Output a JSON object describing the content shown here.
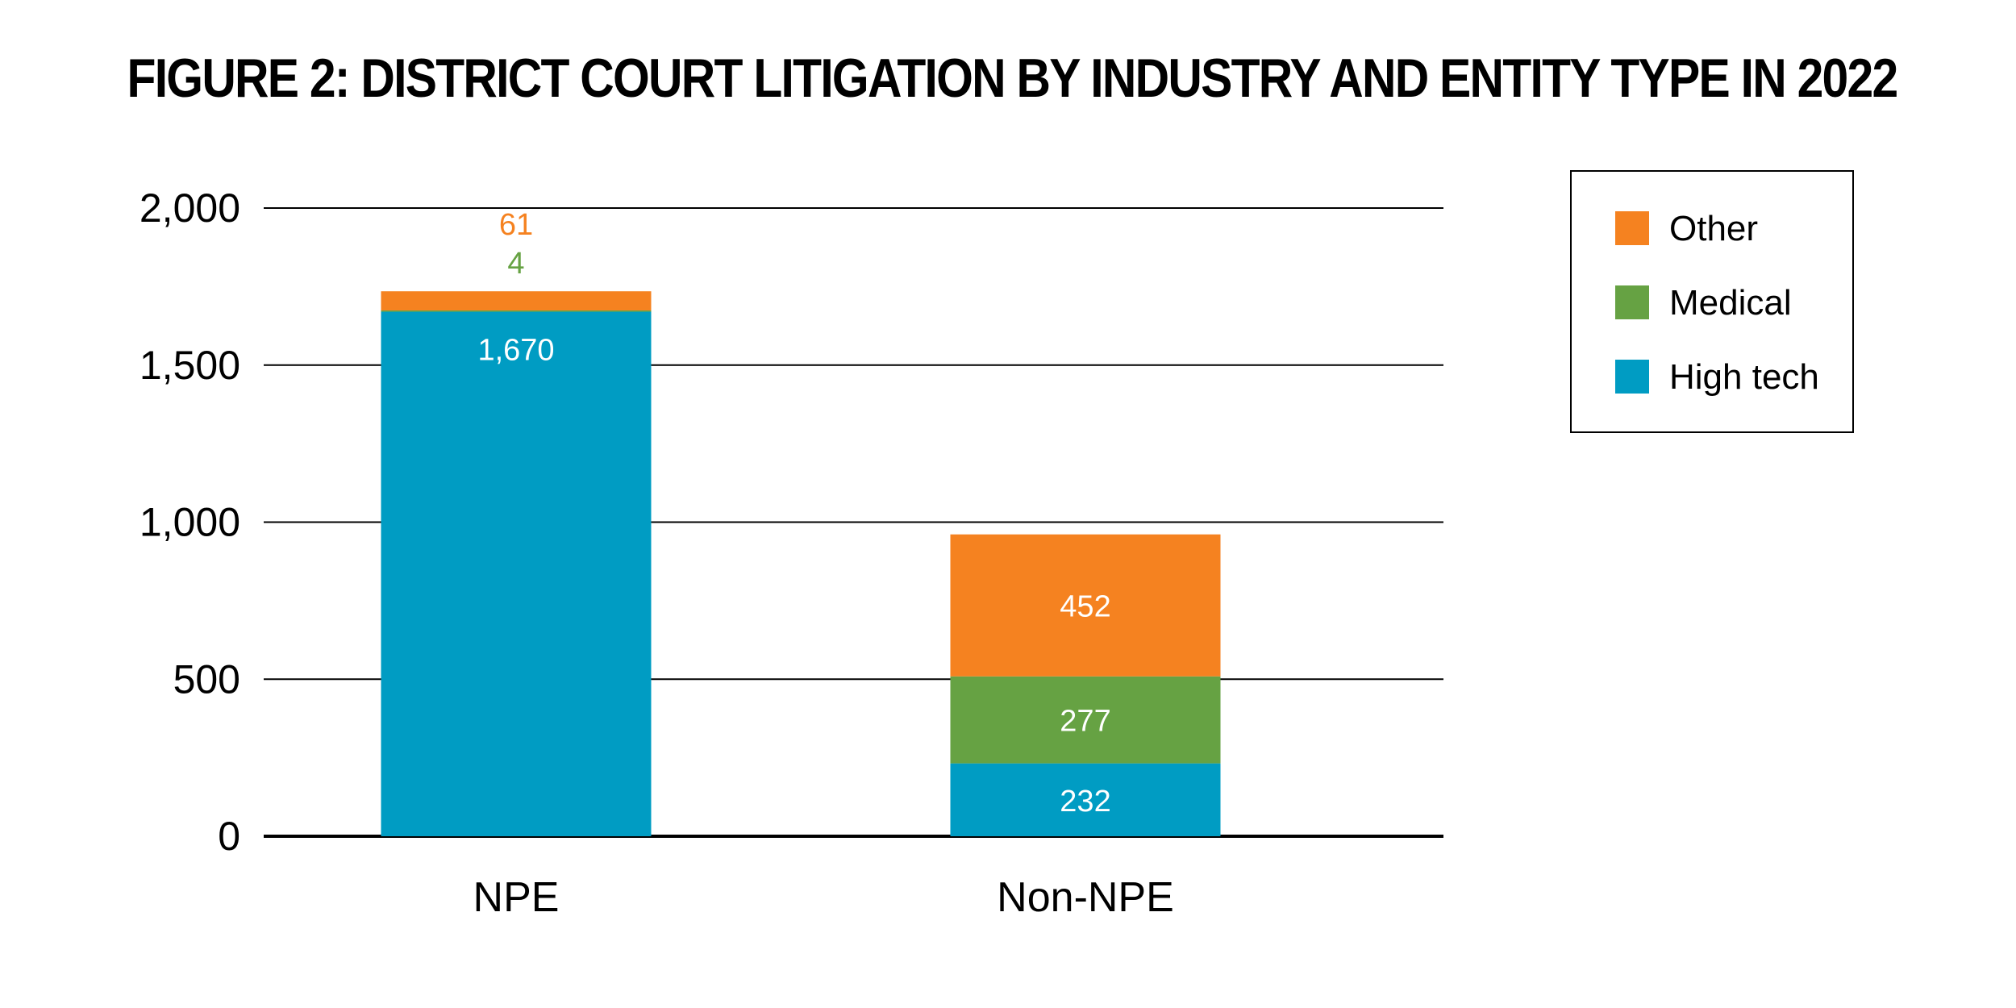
{
  "chart_data": {
    "type": "bar",
    "stacked": true,
    "title": "FIGURE 2: DISTRICT COURT LITIGATION BY INDUSTRY AND ENTITY TYPE IN 2022",
    "xlabel": "",
    "ylabel": "",
    "ylim": [
      0,
      2000
    ],
    "yticks": [
      0,
      500,
      1000,
      1500,
      2000
    ],
    "ytick_labels": [
      "0",
      "500",
      "1,000",
      "1,500",
      "2,000"
    ],
    "grid": true,
    "legend_position": "top-right",
    "categories": [
      "NPE",
      "Non-NPE"
    ],
    "series": [
      {
        "name": "High tech",
        "color": "#009CC3",
        "values": [
          1670,
          232
        ],
        "labels": [
          "1,670",
          "232"
        ]
      },
      {
        "name": "Medical",
        "color": "#66A243",
        "values": [
          4,
          277
        ],
        "labels": [
          "4",
          "277"
        ]
      },
      {
        "name": "Other",
        "color": "#F58220",
        "values": [
          61,
          452
        ],
        "labels": [
          "61",
          "452"
        ]
      }
    ]
  }
}
